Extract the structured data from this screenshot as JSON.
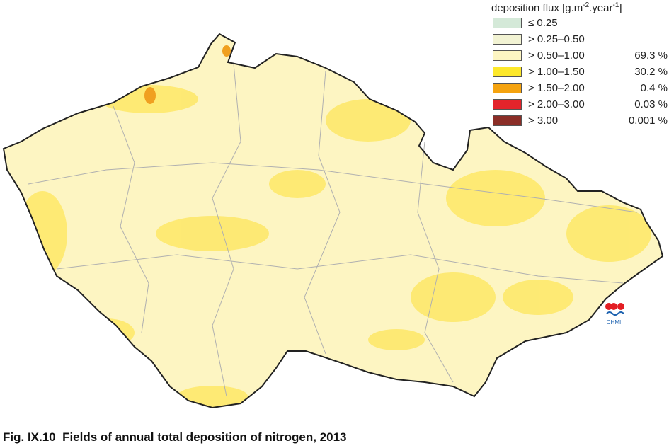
{
  "legend": {
    "title_parts": [
      {
        "text": "deposition flux [g.m"
      },
      {
        "text": "-2",
        "sup": true
      },
      {
        "text": ".year"
      },
      {
        "text": "-1",
        "sup": true
      },
      {
        "text": "]"
      }
    ],
    "items": [
      {
        "label": "≤ 0.25",
        "color": "#d4e9d8"
      },
      {
        "label": "> 0.25–0.50",
        "color": "#f2f3d3"
      },
      {
        "label": "> 0.50–1.00",
        "color": "#fdf5c2",
        "share": "69.3 %"
      },
      {
        "label": "> 1.00–1.50",
        "color": "#fde82a",
        "share": "30.2 %"
      },
      {
        "label": "> 1.50–2.00",
        "color": "#f5a30f",
        "share": "0.4 %"
      },
      {
        "label": "> 2.00–3.00",
        "color": "#e3242b",
        "share": "0.03 %"
      },
      {
        "label": "> 3.00",
        "color": "#8b2e27",
        "share": "0.001 %"
      }
    ]
  },
  "logo": {
    "text": "CHMI"
  },
  "caption": "Fig. IX.10  Fields of annual total deposition of nitrogen, 2013"
}
